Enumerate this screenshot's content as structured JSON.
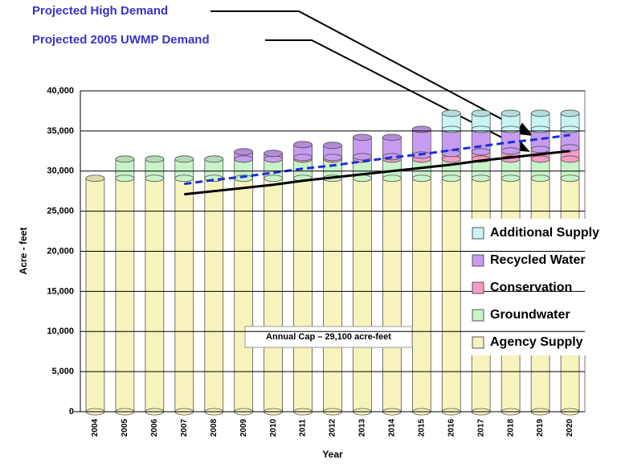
{
  "chart_data": {
    "type": "bar",
    "stacked": true,
    "x_label": "Year",
    "y_label": "Acre - feet",
    "categories": [
      "2004",
      "2005",
      "2006",
      "2007",
      "2008",
      "2009",
      "2010",
      "2011",
      "2012",
      "2013",
      "2014",
      "2015",
      "2016",
      "2017",
      "2018",
      "2019",
      "2020"
    ],
    "series": [
      {
        "name": "Agency Supply",
        "color": "#f7f3bd",
        "values": [
          29100,
          29100,
          29100,
          29100,
          29100,
          29100,
          29100,
          29100,
          29100,
          29100,
          29100,
          29100,
          29100,
          29100,
          29100,
          29100,
          29100
        ]
      },
      {
        "name": "Groundwater",
        "color": "#c8f2c8",
        "values": [
          0,
          2400,
          2400,
          2400,
          2400,
          2400,
          2400,
          2400,
          2400,
          2400,
          2400,
          2400,
          2400,
          2400,
          2400,
          2400,
          2400
        ]
      },
      {
        "name": "Conservation",
        "color": "#f59cc4",
        "values": [
          0,
          0,
          0,
          0,
          0,
          0,
          0,
          200,
          200,
          300,
          300,
          500,
          700,
          900,
          1000,
          1200,
          1400
        ]
      },
      {
        "name": "Recycled Water",
        "color": "#c79cf0",
        "values": [
          0,
          0,
          0,
          0,
          0,
          900,
          700,
          1600,
          1500,
          2400,
          2400,
          3200,
          3000,
          2800,
          2700,
          2500,
          2300
        ]
      },
      {
        "name": "Additional Supply",
        "color": "#c8f4f4",
        "values": [
          0,
          0,
          0,
          0,
          0,
          0,
          0,
          0,
          0,
          0,
          0,
          0,
          2000,
          2000,
          2000,
          2000,
          2000
        ]
      }
    ],
    "lines": [
      {
        "name": "Projected High Demand",
        "color": "#1c2fd6",
        "dashed": true,
        "values": [
          null,
          null,
          null,
          28400,
          28900,
          29300,
          29800,
          30300,
          30700,
          31200,
          31700,
          32100,
          32600,
          33100,
          33600,
          34000,
          34500
        ]
      },
      {
        "name": "Projected 2005 UWMP Demand",
        "color": "#000000",
        "dashed": false,
        "values": [
          null,
          null,
          null,
          27100,
          27500,
          27900,
          28300,
          28800,
          29200,
          29600,
          30000,
          30400,
          30800,
          31300,
          31700,
          32100,
          32500
        ]
      }
    ],
    "annotation": "Annual Cap – 29,100 acre-feet",
    "ylim": [
      0,
      40000
    ],
    "yticks": [
      0,
      {
        "value": 5000,
        "label": "5,000"
      },
      {
        "value": 10000,
        "label": "10,000"
      },
      {
        "value": 15000,
        "label": "15,000"
      },
      {
        "value": 20000,
        "label": "20,000"
      },
      {
        "value": 25000,
        "label": "25,000"
      },
      {
        "value": 30000,
        "label": "30,000"
      },
      {
        "value": 35000,
        "label": "35,000"
      },
      {
        "value": 40000,
        "label": "40,000"
      }
    ],
    "grid": true,
    "legend": "right"
  }
}
